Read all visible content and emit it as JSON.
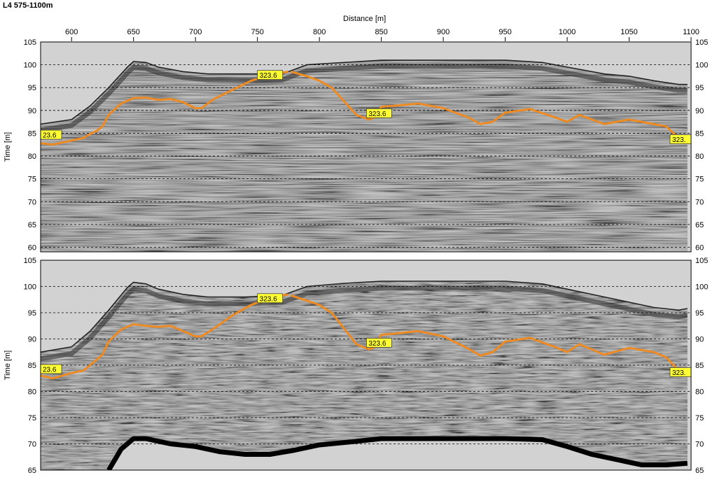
{
  "title": "L4 575-1100m",
  "chart_data": {
    "type": "line",
    "title": "L4 575-1100m",
    "xlabel": "Distance [m]",
    "ylabel": "Time [m]",
    "x_axis_position": "top",
    "xlim": [
      575,
      1100
    ],
    "x_ticks": [
      600,
      650,
      700,
      750,
      800,
      850,
      900,
      950,
      1000,
      1050,
      1100
    ],
    "grid": "dashed horizontal",
    "colors": {
      "background": "#d2d2d2",
      "interpreted_horizon": "#ee8a22",
      "marker_label": "#ffff33",
      "basement_reflector": "#000000"
    },
    "panels": [
      {
        "name": "",
        "ylim": [
          59,
          105
        ],
        "y_ticks": [
          60,
          65,
          70,
          75,
          80,
          85,
          90,
          95,
          100,
          105
        ],
        "surface": {
          "x": [
            575,
            600,
            615,
            630,
            645,
            650,
            660,
            670,
            690,
            710,
            740,
            770,
            790,
            820,
            850,
            900,
            950,
            980,
            1000,
            1030,
            1050,
            1070,
            1090,
            1097
          ],
          "y": [
            87,
            88,
            91,
            95,
            99.5,
            100.7,
            100.5,
            99.5,
            98.5,
            98,
            98,
            98,
            100,
            100.5,
            101,
            101,
            101,
            100.5,
            99.5,
            98,
            97.5,
            96.5,
            95.7,
            95.7
          ]
        },
        "horizon_segments": [
          {
            "x": [
              575,
              585,
              600,
              610,
              615,
              620,
              625,
              630,
              640,
              650,
              660,
              670,
              680,
              690,
              700,
              705,
              715,
              730,
              745,
              760,
              775
            ],
            "y": [
              82.8,
              82.5,
              83.4,
              84,
              84.8,
              85.5,
              86.5,
              89,
              91.5,
              92.7,
              92.8,
              92.3,
              92.5,
              91.8,
              90.5,
              90.5,
              92.5,
              94.5,
              96.5,
              97.8,
              98.5
            ]
          },
          {
            "x": [
              777,
              790,
              800,
              810,
              820,
              830,
              840,
              845,
              850,
              860,
              880,
              900,
              920,
              930,
              940,
              950,
              970,
              990,
              1000,
              1010,
              1020,
              1030,
              1050,
              1070,
              1080,
              1090,
              1095
            ],
            "y": [
              98.5,
              97.5,
              96.5,
              95,
              92,
              89,
              88,
              88.5,
              90.8,
              91,
              91.5,
              90.5,
              88.5,
              87,
              87.5,
              89.5,
              90.3,
              88.5,
              87.5,
              89,
              88,
              87,
              88,
              87,
              86.5,
              84,
              83.5
            ]
          }
        ],
        "markers": [
          {
            "label": "23.6",
            "x": 575,
            "y": 84.6
          },
          {
            "label": "323.6",
            "x": 750,
            "y": 97.7
          },
          {
            "label": "323.6",
            "x": 838,
            "y": 89.3
          },
          {
            "label": "323.",
            "x": 1095,
            "y": 83.6
          }
        ]
      },
      {
        "name": "",
        "ylim": [
          65,
          105
        ],
        "y_ticks": [
          65,
          70,
          75,
          80,
          85,
          90,
          95,
          100,
          105
        ],
        "surface": {
          "x": [
            575,
            600,
            615,
            630,
            645,
            650,
            660,
            670,
            690,
            710,
            740,
            770,
            790,
            820,
            850,
            900,
            950,
            980,
            1000,
            1030,
            1050,
            1070,
            1090,
            1097
          ],
          "y": [
            87.5,
            88.5,
            91.5,
            95.5,
            99.8,
            100.8,
            100.5,
            99.5,
            98.5,
            98,
            98,
            98.3,
            100,
            100.6,
            101,
            101,
            101,
            100.5,
            99.5,
            98,
            97,
            96,
            95.5,
            95.8
          ]
        },
        "horizon_segments": [
          {
            "x": [
              575,
              585,
              600,
              610,
              615,
              620,
              625,
              630,
              640,
              650,
              660,
              670,
              680,
              690,
              700,
              705,
              715,
              730,
              745,
              760,
              775
            ],
            "y": [
              83,
              82.5,
              83.5,
              84,
              85,
              86,
              87,
              89.5,
              91.8,
              92.8,
              92.5,
              92.3,
              92.5,
              91.5,
              90.5,
              90.5,
              92,
              94.5,
              96.5,
              97.8,
              98.5
            ]
          },
          {
            "x": [
              777,
              790,
              800,
              810,
              820,
              830,
              840,
              845,
              850,
              860,
              880,
              900,
              920,
              930,
              940,
              950,
              970,
              990,
              1000,
              1010,
              1020,
              1030,
              1050,
              1070,
              1080,
              1090,
              1095
            ],
            "y": [
              98.3,
              97.3,
              96.5,
              95,
              92,
              89,
              88,
              88.5,
              90.8,
              91,
              91.5,
              90.5,
              88.2,
              86.8,
              87.5,
              89.5,
              90.2,
              88.5,
              87.5,
              89,
              88,
              87,
              88.3,
              87.5,
              86.5,
              84,
              83.3
            ]
          }
        ],
        "basement": {
          "x": [
            630,
            640,
            650,
            660,
            680,
            700,
            720,
            740,
            760,
            780,
            800,
            830,
            850,
            900,
            950,
            980,
            1000,
            1020,
            1040,
            1060,
            1080,
            1097
          ],
          "y": [
            65,
            69,
            71,
            71,
            70,
            69.5,
            68.5,
            68,
            68,
            68.8,
            69.8,
            70.5,
            71,
            71,
            71,
            70.8,
            69.5,
            68,
            67,
            66,
            66,
            66.3
          ]
        },
        "markers": [
          {
            "label": "23.6",
            "x": 575,
            "y": 84.2
          },
          {
            "label": "323.6",
            "x": 750,
            "y": 97.7
          },
          {
            "label": "323.6",
            "x": 838,
            "y": 89.2
          },
          {
            "label": "323.",
            "x": 1095,
            "y": 83.6
          }
        ]
      }
    ]
  }
}
